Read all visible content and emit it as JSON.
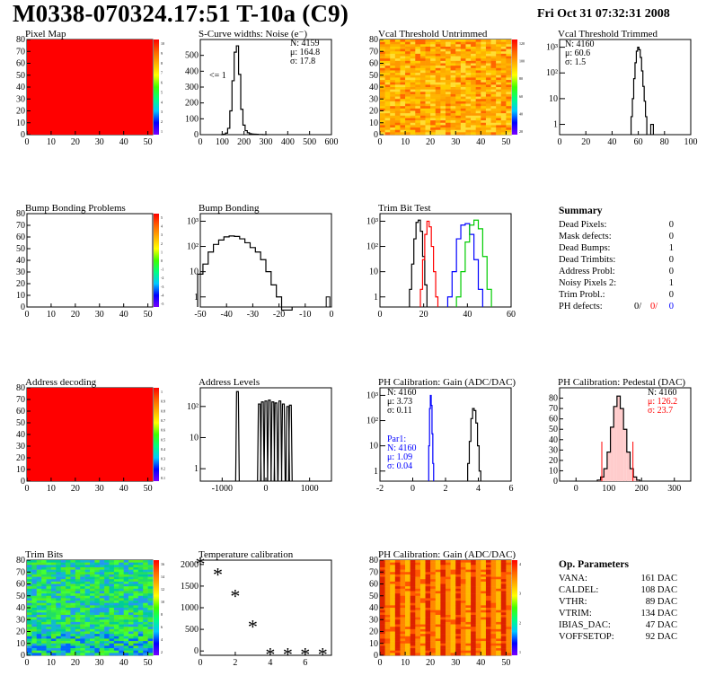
{
  "header": {
    "title": "M0338-070324.17:51 T-10a (C9)",
    "date": "Fri Oct 31 07:32:31 2008"
  },
  "colors": {
    "red": "#ff0000",
    "blue": "#0000ff",
    "green": "#00cc00",
    "black": "#000000"
  },
  "chart_data": [
    {
      "id": "pixel_map",
      "type": "heatmap",
      "title": "Pixel Map",
      "xlim": [
        0,
        52
      ],
      "ylim": [
        0,
        80
      ],
      "xticks": [
        "0",
        "10",
        "20",
        "30",
        "40",
        "50"
      ],
      "yticks": [
        "0",
        "10",
        "20",
        "30",
        "40",
        "50",
        "60",
        "70",
        "80"
      ],
      "fill": "uniform red (max)",
      "palette_ticks": [
        "10",
        "9",
        "8",
        "7",
        "6",
        "5",
        "4",
        "3",
        "2",
        "1"
      ]
    },
    {
      "id": "scurve",
      "type": "line",
      "title": "S-Curve widths: Noise (e⁻)",
      "xlim": [
        0,
        600
      ],
      "ylim": [
        0,
        600
      ],
      "xticks": [
        "0",
        "100",
        "200",
        "300",
        "400",
        "500",
        "600"
      ],
      "yticks": [
        "0",
        "100",
        "200",
        "300",
        "400",
        "500"
      ],
      "stats": [
        "N: 4159",
        "μ: 164.8",
        "σ: 17.8"
      ],
      "annotation": "<= 1",
      "x": [
        100,
        110,
        120,
        130,
        140,
        150,
        160,
        170,
        180,
        190,
        200,
        210,
        220,
        230,
        240,
        250,
        260,
        270,
        280,
        290,
        300
      ],
      "values": [
        0,
        3,
        10,
        40,
        150,
        340,
        520,
        560,
        380,
        160,
        60,
        25,
        12,
        6,
        4,
        3,
        2,
        1,
        1,
        0,
        0
      ]
    },
    {
      "id": "vcal_untrimmed",
      "type": "heatmap",
      "title": "Vcal Threshold Untrimmed",
      "xlim": [
        0,
        52
      ],
      "ylim": [
        0,
        80
      ],
      "xticks": [
        "0",
        "10",
        "20",
        "30",
        "40",
        "50"
      ],
      "yticks": [
        "0",
        "10",
        "20",
        "30",
        "40",
        "50",
        "60",
        "70",
        "80"
      ],
      "palette_ticks": [
        "120",
        "100",
        "80",
        "60",
        "40",
        "20"
      ]
    },
    {
      "id": "vcal_trimmed",
      "type": "line",
      "title": "Vcal Threshold Trimmed",
      "scale": "log",
      "xlim": [
        0,
        100
      ],
      "xticks": [
        "0",
        "20",
        "40",
        "60",
        "80",
        "100"
      ],
      "yticks": [
        "1",
        "10",
        "10²",
        "10³"
      ],
      "stats": [
        "N: 4160",
        "μ: 60.6",
        "σ:  1.5"
      ],
      "x": [
        55,
        56,
        57,
        58,
        59,
        60,
        61,
        62,
        63,
        64,
        65,
        66,
        70,
        71
      ],
      "values": [
        2,
        10,
        60,
        250,
        700,
        1000,
        800,
        400,
        120,
        30,
        8,
        2,
        1,
        1
      ]
    },
    {
      "id": "bump_problems",
      "type": "heatmap",
      "title": "Bump Bonding Problems",
      "xlim": [
        0,
        52
      ],
      "ylim": [
        0,
        80
      ],
      "xticks": [
        "0",
        "10",
        "20",
        "30",
        "40",
        "50"
      ],
      "yticks": [
        "0",
        "10",
        "20",
        "30",
        "40",
        "50",
        "60",
        "70",
        "80"
      ],
      "palette_ticks": [
        "5",
        "4",
        "3",
        "2",
        "1",
        "0",
        "-1",
        "-2",
        "-3",
        "-4",
        "-5"
      ]
    },
    {
      "id": "bump_bonding",
      "type": "line",
      "title": "Bump Bonding",
      "scale": "log",
      "xlim": [
        -50,
        0
      ],
      "xticks": [
        "-50",
        "-40",
        "-30",
        "-20",
        "-10",
        "0"
      ],
      "yticks": [
        "1",
        "10",
        "10²",
        "10³"
      ],
      "x": [
        -50,
        -48,
        -46,
        -44,
        -42,
        -40,
        -38,
        -36,
        -34,
        -32,
        -30,
        -28,
        -26,
        -24,
        -22,
        -20,
        -18,
        -16
      ],
      "values": [
        8,
        20,
        60,
        120,
        180,
        240,
        260,
        250,
        200,
        140,
        90,
        60,
        30,
        10,
        3,
        1,
        0,
        0
      ]
    },
    {
      "id": "trim_bit_test",
      "type": "line",
      "title": "Trim Bit Test",
      "scale": "log",
      "xlim": [
        0,
        60
      ],
      "xticks": [
        "0",
        "20",
        "40",
        "60"
      ],
      "yticks": [
        "1",
        "10",
        "10²",
        "10³"
      ],
      "series": [
        {
          "color": "black",
          "x": [
            14,
            15,
            16,
            17,
            18,
            19,
            20,
            21
          ],
          "values": [
            2,
            20,
            200,
            900,
            1100,
            400,
            40,
            3
          ]
        },
        {
          "color": "red",
          "x": [
            19,
            20,
            21,
            22,
            23,
            24,
            25,
            26
          ],
          "values": [
            2,
            30,
            300,
            1000,
            600,
            100,
            10,
            1
          ]
        },
        {
          "color": "blue",
          "x": [
            32,
            34,
            36,
            38,
            40,
            42,
            44,
            46
          ],
          "values": [
            1,
            10,
            200,
            700,
            800,
            300,
            30,
            2
          ]
        },
        {
          "color": "green",
          "x": [
            36,
            38,
            40,
            42,
            44,
            46,
            48,
            50
          ],
          "values": [
            1,
            10,
            150,
            700,
            1100,
            500,
            40,
            2
          ]
        }
      ]
    },
    {
      "id": "address_decoding",
      "type": "heatmap",
      "title": "Address decoding",
      "xlim": [
        0,
        52
      ],
      "ylim": [
        0,
        80
      ],
      "xticks": [
        "0",
        "10",
        "20",
        "30",
        "40",
        "50"
      ],
      "yticks": [
        "0",
        "10",
        "20",
        "30",
        "40",
        "50",
        "60",
        "70",
        "80"
      ],
      "fill": "uniform red (max)",
      "palette_ticks": [
        "1",
        "0.9",
        "0.8",
        "0.7",
        "0.6",
        "0.5",
        "0.4",
        "0.3",
        "0.2",
        "0.1"
      ]
    },
    {
      "id": "address_levels",
      "type": "line",
      "title": "Address Levels",
      "scale": "log",
      "xlim": [
        -1500,
        1500
      ],
      "xticks": [
        "-1000",
        "0",
        "1000"
      ],
      "yticks": [
        "1",
        "10",
        "10²"
      ],
      "x": [
        -650,
        -150,
        -80,
        0,
        80,
        160,
        230,
        320,
        400,
        500,
        560
      ],
      "values": [
        300,
        120,
        140,
        150,
        160,
        140,
        130,
        150,
        120,
        100,
        110
      ]
    },
    {
      "id": "ph_gain",
      "type": "line",
      "title": "PH Calibration: Gain (ADC/DAC)",
      "scale": "log",
      "xlim": [
        -2,
        6
      ],
      "xticks": [
        "-2",
        "0",
        "2",
        "4",
        "6"
      ],
      "yticks": [
        "1",
        "10",
        "10²",
        "10³"
      ],
      "stats": [
        "N: 4160",
        "μ: 3.73",
        "σ: 0.11"
      ],
      "par1": [
        "Par1:",
        "N: 4160",
        "μ: 1.09",
        "σ: 0.04"
      ],
      "series": [
        {
          "color": "black",
          "x": [
            3.4,
            3.5,
            3.6,
            3.7,
            3.8,
            3.9,
            4.0,
            4.1
          ],
          "values": [
            2,
            15,
            120,
            300,
            250,
            80,
            10,
            1
          ]
        },
        {
          "color": "blue",
          "x": [
            1.0,
            1.05,
            1.1,
            1.15,
            1.2,
            1.25
          ],
          "values": [
            10,
            300,
            1000,
            400,
            30,
            2
          ]
        }
      ]
    },
    {
      "id": "ph_pedestal",
      "type": "bar",
      "title": "PH Calibration: Pedestal (DAC)",
      "xlim": [
        -50,
        350
      ],
      "ylim": [
        0,
        90
      ],
      "xticks": [
        "0",
        "100",
        "200",
        "300"
      ],
      "yticks": [
        "0",
        "10",
        "20",
        "30",
        "40",
        "50",
        "60",
        "70",
        "80"
      ],
      "stats": [
        "N: 4160",
        "μ: 126.2",
        "σ: 23.7"
      ],
      "x": [
        70,
        80,
        90,
        100,
        110,
        120,
        130,
        140,
        150,
        160,
        170,
        180,
        190
      ],
      "values": [
        1,
        4,
        12,
        28,
        52,
        72,
        82,
        70,
        50,
        28,
        12,
        4,
        1
      ]
    },
    {
      "id": "trim_bits",
      "type": "heatmap",
      "title": "Trim Bits",
      "xlim": [
        0,
        52
      ],
      "ylim": [
        0,
        80
      ],
      "xticks": [
        "0",
        "10",
        "20",
        "30",
        "40",
        "50"
      ],
      "yticks": [
        "0",
        "10",
        "20",
        "30",
        "40",
        "50",
        "60",
        "70",
        "80"
      ],
      "palette_ticks": [
        "16",
        "14",
        "12",
        "10",
        "8",
        "6",
        "4",
        "2"
      ]
    },
    {
      "id": "temperature",
      "type": "scatter",
      "title": "Temperature calibration",
      "xlim": [
        0,
        7.5
      ],
      "ylim": [
        -100,
        2100
      ],
      "xticks": [
        "0",
        "2",
        "4",
        "6"
      ],
      "yticks": [
        "0",
        "500",
        "1000",
        "1500",
        "2000"
      ],
      "x": [
        0,
        1,
        2,
        3,
        4,
        5,
        6,
        7
      ],
      "values": [
        2050,
        1800,
        1300,
        600,
        -50,
        -50,
        -50,
        -50
      ]
    },
    {
      "id": "ph_gain_map",
      "type": "heatmap",
      "title": "PH Calibration: Gain (ADC/DAC)",
      "xlim": [
        0,
        52
      ],
      "ylim": [
        0,
        80
      ],
      "xticks": [
        "0",
        "10",
        "20",
        "30",
        "40",
        "50"
      ],
      "yticks": [
        "0",
        "10",
        "20",
        "30",
        "40",
        "50",
        "60",
        "70",
        "80"
      ],
      "palette_ticks": [
        "4",
        "3",
        "2",
        "1"
      ]
    }
  ],
  "summary": {
    "title": "Summary",
    "rows": [
      {
        "label": "Dead Pixels:",
        "value": "0"
      },
      {
        "label": "Mask defects:",
        "value": "0"
      },
      {
        "label": "Dead Bumps:",
        "value": "1"
      },
      {
        "label": "Dead Trimbits:",
        "value": "0"
      },
      {
        "label": "Address Probl:",
        "value": "0"
      },
      {
        "label": "Noisy Pixels 2:",
        "value": "1"
      },
      {
        "label": "Trim Probl.:",
        "value": "0"
      }
    ],
    "ph_label": "PH defects:",
    "ph_values": [
      "0/",
      "0/",
      "0"
    ]
  },
  "op_params": {
    "title": "Op. Parameters",
    "rows": [
      {
        "label": "VANA:",
        "value": "161 DAC"
      },
      {
        "label": "CALDEL:",
        "value": "108 DAC"
      },
      {
        "label": "VTHR:",
        "value": "89 DAC"
      },
      {
        "label": "VTRIM:",
        "value": "134 DAC"
      },
      {
        "label": "IBIAS_DAC:",
        "value": "47 DAC"
      },
      {
        "label": "VOFFSETOP:",
        "value": "92 DAC"
      }
    ]
  }
}
